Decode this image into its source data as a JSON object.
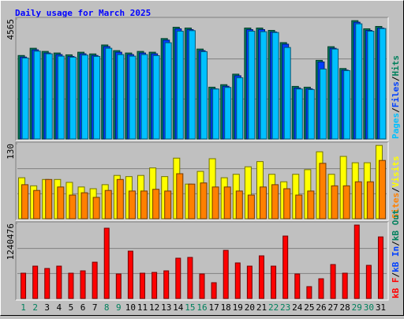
{
  "chart_data": [
    {
      "type": "bar",
      "title": "Daily usage for March 2025",
      "ylim": [
        0,
        4565
      ],
      "yticks": [
        4565
      ],
      "legend_separator": "/",
      "series": [
        {
          "name": "Hits",
          "color": "#00805c",
          "values": [
            3175,
            3450,
            3330,
            3270,
            3200,
            3300,
            3235,
            3575,
            3360,
            3270,
            3330,
            3300,
            3820,
            4250,
            4220,
            3420,
            1970,
            2065,
            2465,
            4220,
            4220,
            4130,
            3665,
            2000,
            1970,
            2990,
            3510,
            2680,
            4500,
            4190,
            4280
          ]
        },
        {
          "name": "Files",
          "color": "#0040ff",
          "values": [
            3115,
            3390,
            3270,
            3210,
            3140,
            3240,
            3175,
            3515,
            3300,
            3210,
            3270,
            3240,
            3760,
            4190,
            4160,
            3360,
            1910,
            2005,
            2405,
            4160,
            4160,
            4070,
            3605,
            1940,
            1910,
            2930,
            3450,
            2620,
            4440,
            4130,
            4220
          ]
        },
        {
          "name": "Pages",
          "color": "#00c0ff",
          "values": [
            3080,
            3340,
            3240,
            3150,
            3110,
            3190,
            3140,
            3450,
            3210,
            3150,
            3210,
            3170,
            3660,
            4100,
            4120,
            3320,
            1900,
            1960,
            2330,
            4100,
            4080,
            4050,
            3480,
            1900,
            1880,
            2660,
            3420,
            2600,
            4380,
            4100,
            4200
          ]
        }
      ]
    },
    {
      "type": "bar",
      "ylim": [
        0,
        130
      ],
      "yticks": [
        130
      ],
      "series": [
        {
          "name": "Visits",
          "color": "#ffff00",
          "values": [
            71,
            57,
            68,
            68,
            63,
            55,
            52,
            59,
            75,
            73,
            75,
            88,
            73,
            105,
            60,
            82,
            104,
            71,
            77,
            90,
            99,
            77,
            64,
            77,
            85,
            116,
            77,
            108,
            97,
            97,
            127
          ]
        },
        {
          "name": "Sites",
          "color": "#ff8000",
          "values": [
            59,
            49,
            68,
            55,
            41,
            45,
            37,
            49,
            68,
            48,
            48,
            51,
            48,
            78,
            60,
            62,
            55,
            55,
            48,
            41,
            55,
            59,
            52,
            41,
            48,
            96,
            57,
            57,
            64,
            64,
            101
          ]
        }
      ]
    },
    {
      "type": "bar",
      "ylim": [
        0,
        1240476
      ],
      "yticks": [
        1240476
      ],
      "categories": [
        "1",
        "2",
        "3",
        "4",
        "5",
        "6",
        "7",
        "8",
        "9",
        "10",
        "11",
        "12",
        "13",
        "14",
        "15",
        "16",
        "17",
        "18",
        "19",
        "20",
        "21",
        "22",
        "23",
        "24",
        "25",
        "26",
        "27",
        "28",
        "29",
        "30",
        "31"
      ],
      "category_colors": [
        "#00805c",
        "#00805c",
        "#000000",
        "#000000",
        "#000000",
        "#000000",
        "#000000",
        "#00805c",
        "#00805c",
        "#000000",
        "#000000",
        "#000000",
        "#000000",
        "#000000",
        "#00805c",
        "#00805c",
        "#000000",
        "#000000",
        "#000000",
        "#000000",
        "#000000",
        "#00805c",
        "#00805c",
        "#000000",
        "#000000",
        "#000000",
        "#000000",
        "#000000",
        "#00805c",
        "#00805c",
        "#000000"
      ],
      "legend_labels": [
        {
          "text": "kB F",
          "color": "#ff0000"
        },
        {
          "text": "kB In",
          "color": "#0040ff"
        },
        {
          "text": "kB Out",
          "color": "#00805c"
        }
      ],
      "legend_separator": "/",
      "series": [
        {
          "name": "kB F",
          "color": "#ff0000",
          "values": [
            418000,
            535000,
            496000,
            535000,
            418000,
            457000,
            600000,
            1162000,
            405000,
            783000,
            418000,
            431000,
            457000,
            666000,
            679000,
            405000,
            261000,
            796000,
            588000,
            535000,
            705000,
            535000,
            1032000,
            405000,
            196000,
            326000,
            561000,
            418000,
            1214000,
            548000,
            1018000
          ]
        }
      ]
    }
  ]
}
